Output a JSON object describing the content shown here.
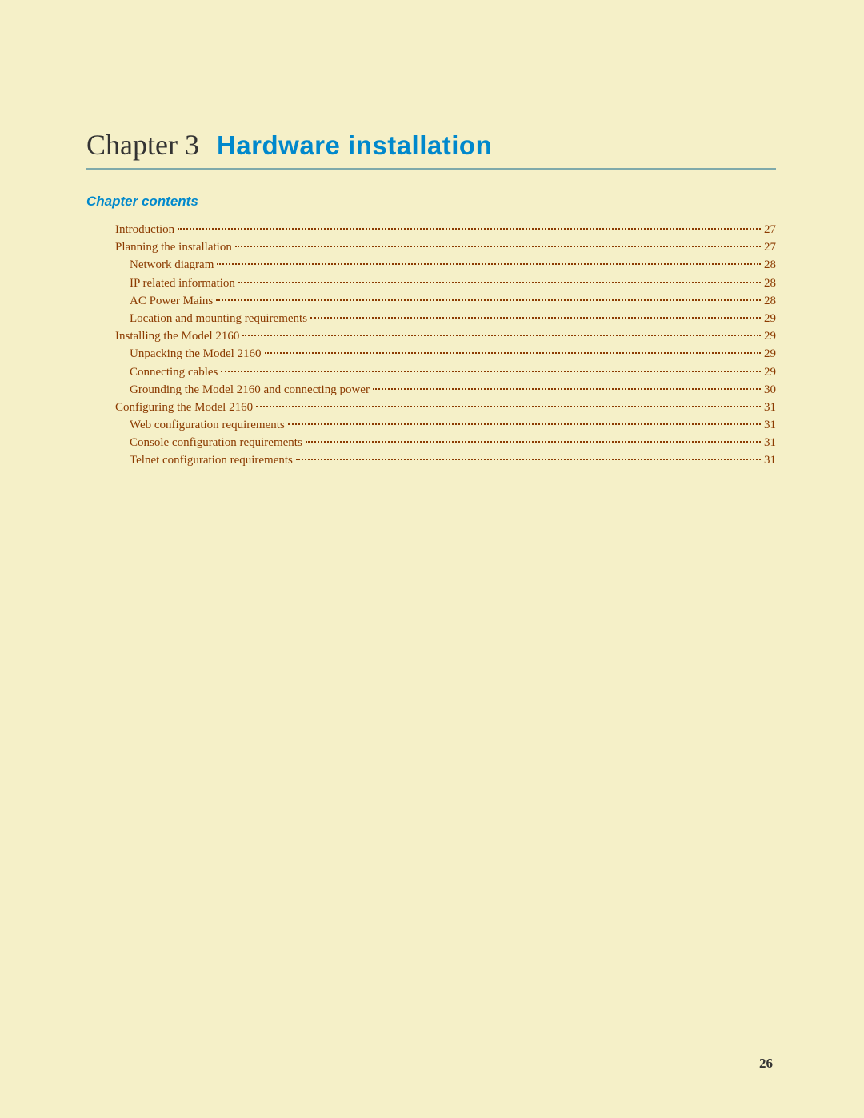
{
  "colors": {
    "page_background": "#f5f0c8",
    "chapter_label_color": "#333333",
    "heading_blue": "#0088cc",
    "underline_color": "#7faaaa",
    "toc_text_color": "#8b3a00",
    "page_number_color": "#333333"
  },
  "typography": {
    "chapter_label_fontsize": 36,
    "chapter_title_fontsize": 33,
    "contents_heading_fontsize": 17,
    "toc_entry_fontsize": 15,
    "page_number_fontsize": 17
  },
  "header": {
    "chapter_label": "Chapter 3",
    "chapter_title": "Hardware installation"
  },
  "contents_heading": "Chapter contents",
  "toc": {
    "entries": [
      {
        "level": 0,
        "text": "Introduction",
        "page": "27"
      },
      {
        "level": 0,
        "text": "Planning the installation",
        "page": "27"
      },
      {
        "level": 1,
        "text": "Network diagram ",
        "page": "28"
      },
      {
        "level": 1,
        "text": "IP related information ",
        "page": "28"
      },
      {
        "level": 1,
        "text": "AC Power Mains ",
        "page": "28"
      },
      {
        "level": 1,
        "text": "Location and mounting requirements ",
        "page": "29"
      },
      {
        "level": 0,
        "text": "Installing the Model 2160 ",
        "page": "29"
      },
      {
        "level": 1,
        "text": "Unpacking the Model 2160 ",
        "page": "29"
      },
      {
        "level": 1,
        "text": "Connecting cables ",
        "page": "29"
      },
      {
        "level": 1,
        "text": "Grounding the Model 2160 and connecting power ",
        "page": "30"
      },
      {
        "level": 0,
        "text": "Configuring the Model 2160",
        "page": "31"
      },
      {
        "level": 1,
        "text": "Web configuration requirements ",
        "page": "31"
      },
      {
        "level": 1,
        "text": "Console configuration requirements ",
        "page": "31"
      },
      {
        "level": 1,
        "text": "Telnet configuration requirements ",
        "page": "31"
      }
    ]
  },
  "page_number": "26"
}
